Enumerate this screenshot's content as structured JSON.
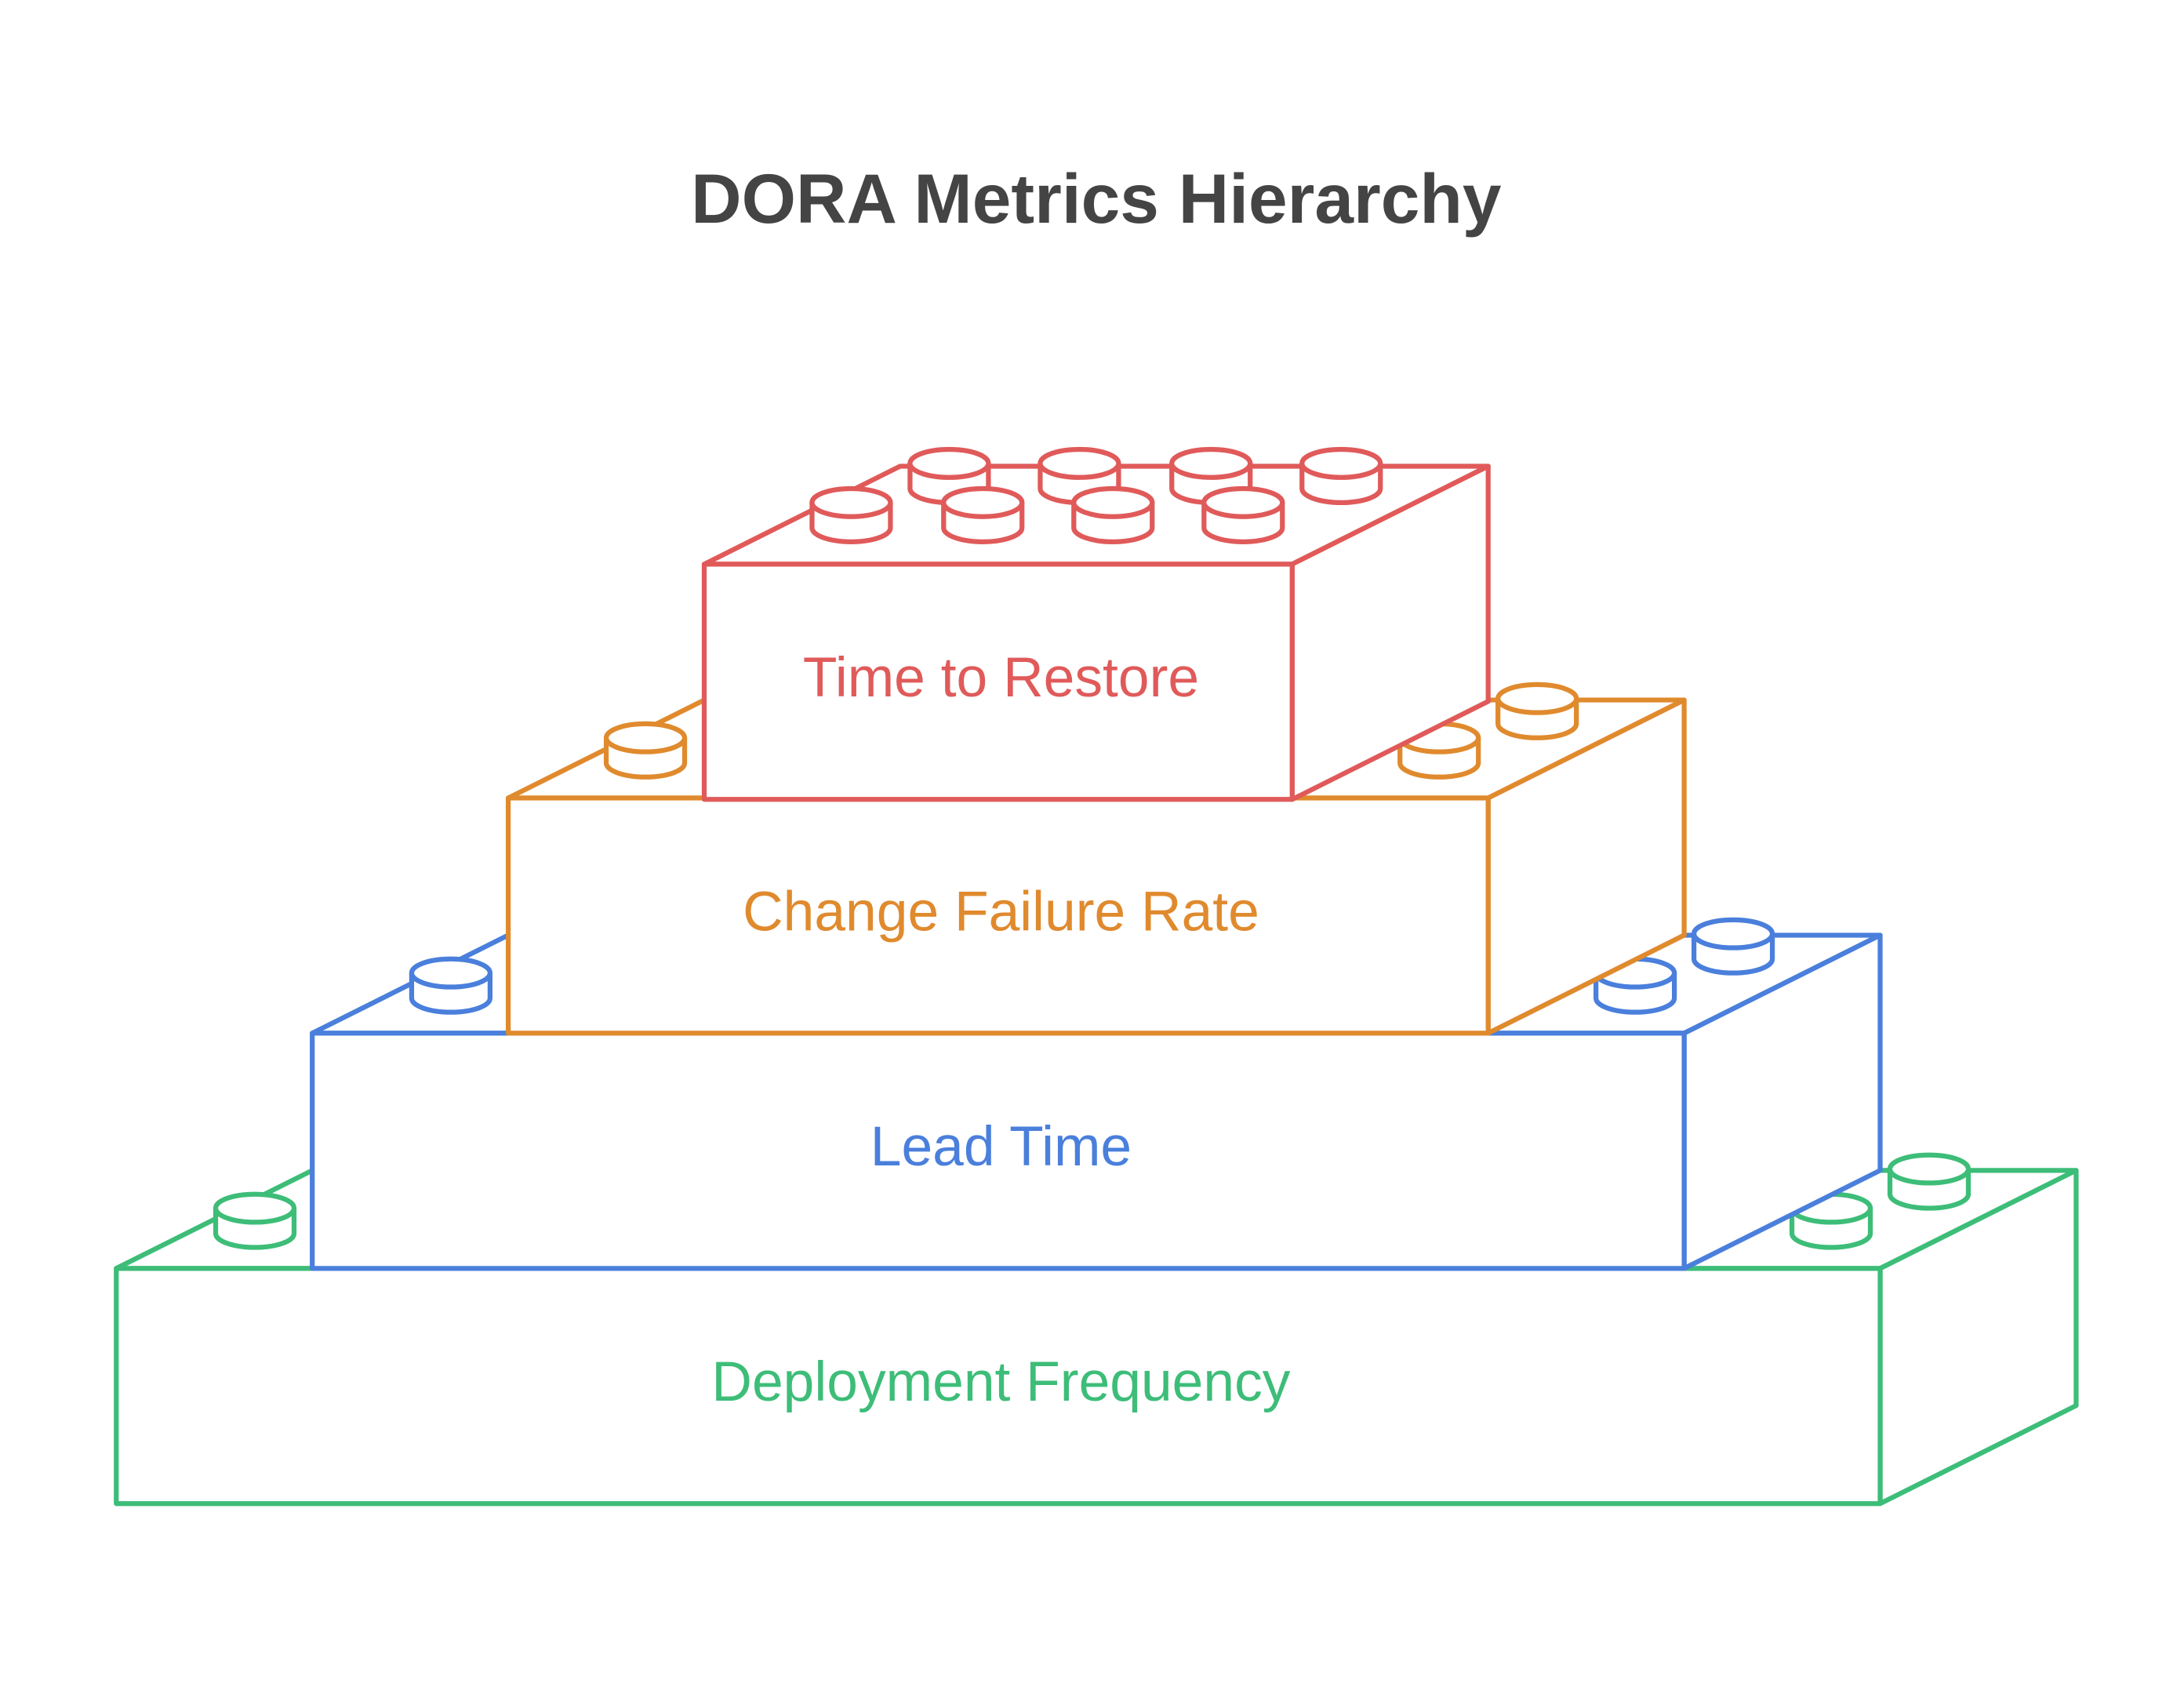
{
  "title": "DORA Metrics Hierarchy",
  "layers": [
    {
      "label": "Time to Restore",
      "color": "#e05a5a"
    },
    {
      "label": "Change Failure Rate",
      "color": "#e08a2e"
    },
    {
      "label": "Lead Time",
      "color": "#4a7fdc"
    },
    {
      "label": "Deployment Frequency",
      "color": "#3dbd78"
    }
  ]
}
